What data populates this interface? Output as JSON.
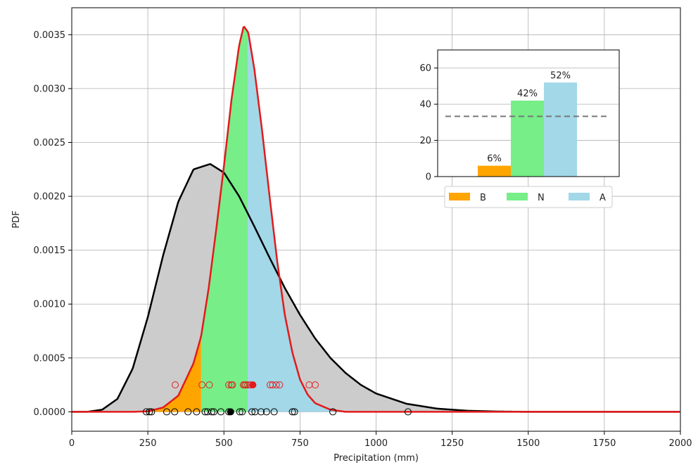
{
  "chart_data": [
    {
      "type": "area",
      "xlabel": "Precipitation (mm)",
      "ylabel": "PDF",
      "xlim": [
        0,
        2000
      ],
      "ylim": [
        -0.00018,
        0.00375
      ],
      "xticks": [
        0,
        250,
        500,
        750,
        1000,
        1250,
        1500,
        1750,
        2000
      ],
      "xtick_labels": [
        "0",
        "250",
        "500",
        "750",
        "1000",
        "1250",
        "1500",
        "1750",
        "2000"
      ],
      "yticks": [
        0,
        0.0005,
        0.001,
        0.0015,
        0.002,
        0.0025,
        0.003,
        0.0035
      ],
      "ytick_labels": [
        "0.0000",
        "0.0005",
        "0.0010",
        "0.0015",
        "0.0020",
        "0.0025",
        "0.0030",
        "0.0035"
      ],
      "grid": true,
      "series": [
        {
          "color": "#000000",
          "fill": "#cccccc",
          "points": [
            [
              0,
              0
            ],
            [
              50,
              0
            ],
            [
              100,
              2e-05
            ],
            [
              150,
              0.00012
            ],
            [
              200,
              0.0004
            ],
            [
              250,
              0.00088
            ],
            [
              300,
              0.00145
            ],
            [
              350,
              0.00195
            ],
            [
              400,
              0.00225
            ],
            [
              455,
              0.0023
            ],
            [
              500,
              0.00222
            ],
            [
              550,
              0.002
            ],
            [
              600,
              0.00172
            ],
            [
              650,
              0.00143
            ],
            [
              700,
              0.00115
            ],
            [
              750,
              0.0009
            ],
            [
              800,
              0.00068
            ],
            [
              850,
              0.0005
            ],
            [
              900,
              0.00036
            ],
            [
              950,
              0.00025
            ],
            [
              1000,
              0.00017
            ],
            [
              1100,
              7.5e-05
            ],
            [
              1200,
              3e-05
            ],
            [
              1300,
              1e-05
            ],
            [
              1400,
              3e-06
            ],
            [
              1500,
              0
            ],
            [
              2000,
              0
            ]
          ]
        },
        {
          "color": "#e31a1c",
          "points": [
            [
              0,
              0
            ],
            [
              200,
              0
            ],
            [
              250,
              5e-06
            ],
            [
              300,
              4e-05
            ],
            [
              350,
              0.00015
            ],
            [
              400,
              0.00045
            ],
            [
              425,
              0.0007
            ],
            [
              450,
              0.00115
            ],
            [
              475,
              0.0017
            ],
            [
              500,
              0.00228
            ],
            [
              525,
              0.0029
            ],
            [
              550,
              0.0034
            ],
            [
              565,
              0.00358
            ],
            [
              580,
              0.00352
            ],
            [
              600,
              0.00318
            ],
            [
              625,
              0.00262
            ],
            [
              650,
              0.002
            ],
            [
              675,
              0.0014
            ],
            [
              700,
              0.0009
            ],
            [
              725,
              0.00055
            ],
            [
              750,
              0.0003
            ],
            [
              775,
              0.00016
            ],
            [
              800,
              8e-05
            ],
            [
              850,
              2e-05
            ],
            [
              900,
              0
            ],
            [
              2000,
              0
            ]
          ]
        }
      ],
      "terciles": [
        {
          "name": "B",
          "from": 0,
          "to": 425,
          "color": "#ffa500"
        },
        {
          "name": "N",
          "from": 425,
          "to": 578,
          "color": "#77ee88"
        },
        {
          "name": "A",
          "from": 578,
          "to": 2000,
          "color": "#a2d8e8"
        }
      ],
      "markers": {
        "black_open": [
          245,
          255,
          262,
          312,
          338,
          382,
          410,
          438,
          446,
          460,
          467,
          490,
          516,
          552,
          560,
          592,
          602,
          622,
          640,
          665,
          725,
          732,
          858,
          1105
        ],
        "black_filled": [
          522
        ],
        "red_open": [
          340,
          428,
          452,
          516,
          524,
          528,
          564,
          568,
          572,
          578,
          587,
          652,
          660,
          672,
          683,
          780,
          800
        ],
        "red_filled": [
          595
        ],
        "black_y": 0,
        "red_y": 0.00025
      }
    },
    {
      "type": "bar",
      "categories": [
        "B",
        "N",
        "A"
      ],
      "values": [
        6,
        42,
        52
      ],
      "value_labels": [
        "6%",
        "42%",
        "52%"
      ],
      "colors": [
        "#ffa500",
        "#77ee88",
        "#a2d8e8"
      ],
      "ylim": [
        0,
        70
      ],
      "yticks": [
        0,
        20,
        40,
        60
      ],
      "ytick_labels": [
        "0",
        "20",
        "40",
        "60"
      ],
      "reference_line": 33.3,
      "legend": [
        "B",
        "N",
        "A"
      ],
      "legend_position": "below"
    }
  ]
}
